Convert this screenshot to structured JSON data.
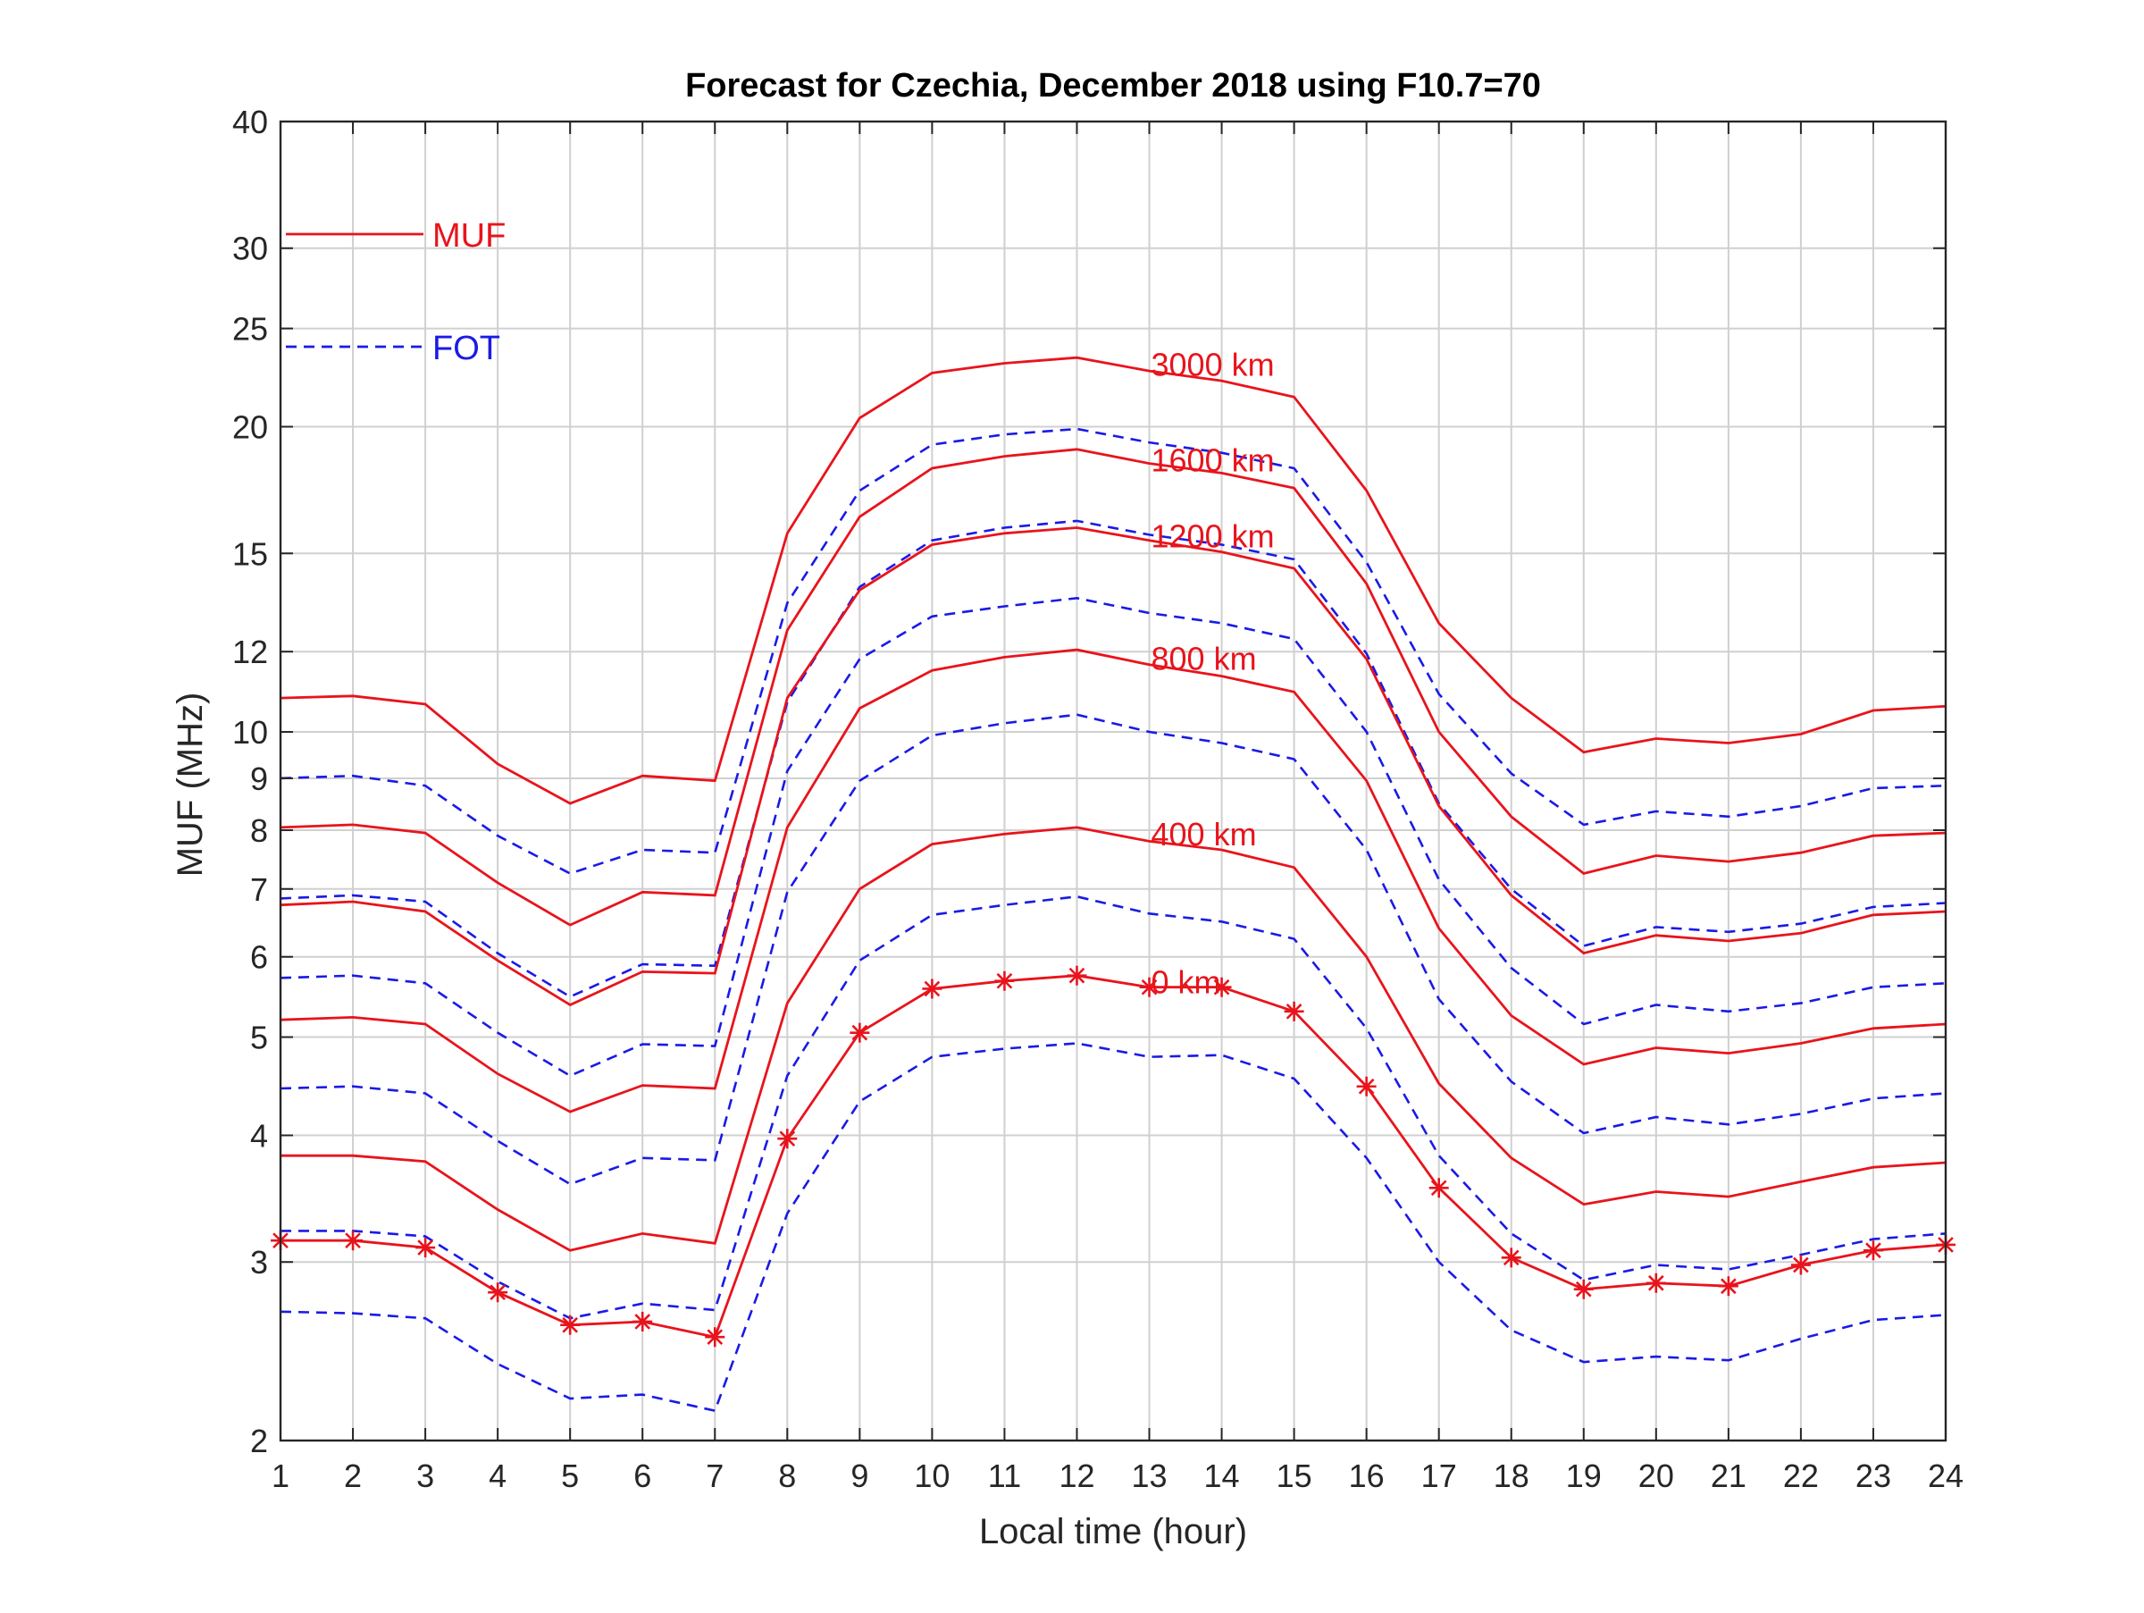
{
  "chart_data": {
    "type": "line",
    "title": "Forecast for Czechia, December 2018 using F10.7=70",
    "xlabel": "Local time (hour)",
    "ylabel": "MUF (MHz)",
    "x": [
      1,
      2,
      3,
      4,
      5,
      6,
      7,
      8,
      9,
      10,
      11,
      12,
      13,
      14,
      15,
      16,
      17,
      18,
      19,
      20,
      21,
      22,
      23,
      24
    ],
    "xlim": [
      1,
      24
    ],
    "ylim": [
      2,
      40
    ],
    "yscale": "log",
    "yticks": [
      2,
      3,
      4,
      5,
      6,
      7,
      8,
      9,
      10,
      12,
      15,
      20,
      25,
      30,
      40
    ],
    "ytick_labels": [
      "2",
      "3",
      "4",
      "5",
      "6",
      "7",
      "8",
      "9",
      "10",
      "12",
      "15",
      "20",
      "25",
      "30",
      "40"
    ],
    "xtick_labels": [
      "1",
      "2",
      "3",
      "4",
      "5",
      "6",
      "7",
      "8",
      "9",
      "10",
      "11",
      "12",
      "13",
      "14",
      "15",
      "16",
      "17",
      "18",
      "19",
      "20",
      "21",
      "22",
      "23",
      "24"
    ],
    "grid": true,
    "minor_grid": true,
    "legend": {
      "position": "top-left",
      "entries": [
        {
          "label": "MUF",
          "color": "#e8141c",
          "style": "solid"
        },
        {
          "label": "FOT",
          "color": "#1a1ae6",
          "style": "dashed"
        }
      ]
    },
    "colors": {
      "muf": "#e8141c",
      "fot": "#1a1ae6",
      "grid": "#d0d0d0",
      "axis": "#262626"
    },
    "muf_series": [
      {
        "distance": "3000 km",
        "values": [
          10.8,
          10.85,
          10.65,
          9.3,
          8.5,
          9.05,
          8.95,
          15.7,
          20.4,
          22.6,
          23.1,
          23.4,
          22.7,
          22.2,
          21.4,
          17.3,
          12.8,
          10.8,
          9.55,
          9.85,
          9.75,
          9.95,
          10.5,
          10.6
        ]
      },
      {
        "distance": "1600 km",
        "values": [
          8.05,
          8.1,
          7.95,
          7.1,
          6.45,
          6.95,
          6.9,
          12.6,
          16.3,
          18.2,
          18.7,
          19.0,
          18.4,
          18.0,
          17.4,
          14.0,
          10.0,
          8.25,
          7.25,
          7.55,
          7.45,
          7.6,
          7.9,
          7.95
        ]
      },
      {
        "distance": "1200 km",
        "values": [
          6.75,
          6.8,
          6.65,
          5.95,
          5.38,
          5.8,
          5.78,
          10.8,
          13.8,
          15.3,
          15.7,
          15.9,
          15.45,
          15.05,
          14.5,
          11.8,
          8.45,
          6.9,
          6.05,
          6.3,
          6.22,
          6.33,
          6.6,
          6.65
        ]
      },
      {
        "distance": "800 km",
        "values": [
          5.2,
          5.23,
          5.15,
          4.6,
          4.22,
          4.48,
          4.45,
          8.05,
          10.55,
          11.5,
          11.85,
          12.05,
          11.65,
          11.35,
          10.95,
          8.95,
          6.4,
          5.25,
          4.7,
          4.88,
          4.82,
          4.93,
          5.1,
          5.15
        ]
      },
      {
        "distance": "400 km",
        "values": [
          3.82,
          3.82,
          3.77,
          3.38,
          3.08,
          3.2,
          3.13,
          5.4,
          7.0,
          7.75,
          7.93,
          8.05,
          7.8,
          7.65,
          7.35,
          6.0,
          4.5,
          3.8,
          3.42,
          3.52,
          3.48,
          3.6,
          3.72,
          3.76
        ]
      },
      {
        "distance": "0 km",
        "markers": true,
        "values": [
          3.15,
          3.15,
          3.1,
          2.8,
          2.6,
          2.62,
          2.53,
          3.97,
          5.05,
          5.58,
          5.68,
          5.75,
          5.6,
          5.6,
          5.3,
          4.47,
          3.55,
          3.03,
          2.82,
          2.86,
          2.84,
          2.98,
          3.08,
          3.12
        ]
      }
    ],
    "fot_series": [
      {
        "distance": "3000 km",
        "values": [
          9.0,
          9.05,
          8.85,
          7.9,
          7.25,
          7.65,
          7.6,
          13.4,
          17.3,
          19.2,
          19.65,
          19.9,
          19.3,
          18.85,
          18.2,
          14.7,
          10.9,
          9.1,
          8.1,
          8.35,
          8.25,
          8.45,
          8.8,
          8.85
        ]
      },
      {
        "distance": "1600 km",
        "values": [
          6.85,
          6.9,
          6.8,
          6.05,
          5.48,
          5.9,
          5.88,
          10.7,
          13.9,
          15.45,
          15.9,
          16.15,
          15.65,
          15.3,
          14.8,
          11.95,
          8.5,
          7.0,
          6.15,
          6.42,
          6.35,
          6.47,
          6.72,
          6.78
        ]
      },
      {
        "distance": "1200 km",
        "values": [
          5.72,
          5.75,
          5.65,
          5.05,
          4.58,
          4.92,
          4.9,
          9.15,
          11.8,
          13.0,
          13.3,
          13.55,
          13.1,
          12.8,
          12.35,
          10.0,
          7.15,
          5.85,
          5.15,
          5.38,
          5.3,
          5.4,
          5.6,
          5.65
        ]
      },
      {
        "distance": "800 km",
        "values": [
          4.45,
          4.47,
          4.4,
          3.95,
          3.58,
          3.8,
          3.78,
          6.95,
          8.95,
          9.92,
          10.2,
          10.4,
          10.0,
          9.75,
          9.4,
          7.65,
          5.45,
          4.52,
          4.02,
          4.17,
          4.1,
          4.2,
          4.35,
          4.4
        ]
      },
      {
        "distance": "400 km",
        "values": [
          3.22,
          3.22,
          3.18,
          2.87,
          2.64,
          2.73,
          2.69,
          4.58,
          5.95,
          6.6,
          6.75,
          6.88,
          6.62,
          6.5,
          6.25,
          5.1,
          3.82,
          3.2,
          2.88,
          2.98,
          2.95,
          3.05,
          3.16,
          3.2
        ]
      },
      {
        "distance": "0 km",
        "values": [
          2.68,
          2.67,
          2.64,
          2.38,
          2.2,
          2.22,
          2.14,
          3.35,
          4.32,
          4.78,
          4.87,
          4.93,
          4.78,
          4.8,
          4.55,
          3.8,
          3.0,
          2.57,
          2.39,
          2.42,
          2.4,
          2.52,
          2.63,
          2.66
        ]
      }
    ],
    "annotations": [
      {
        "text": "3000 km",
        "x": 13,
        "y": 23.1
      },
      {
        "text": "1600 km",
        "x": 13,
        "y": 18.6
      },
      {
        "text": "1200 km",
        "x": 13,
        "y": 15.65
      },
      {
        "text": "800 km",
        "x": 13,
        "y": 11.85
      },
      {
        "text": "400 km",
        "x": 13,
        "y": 7.95
      },
      {
        "text": "0 km",
        "x": 13,
        "y": 5.68
      }
    ]
  }
}
